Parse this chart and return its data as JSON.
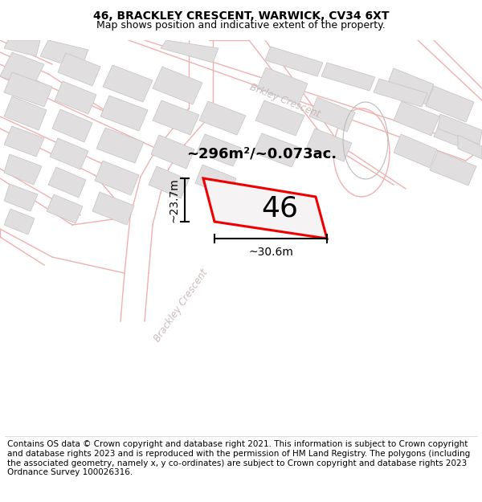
{
  "title": "46, BRACKLEY CRESCENT, WARWICK, CV34 6XT",
  "subtitle": "Map shows position and indicative extent of the property.",
  "area_text": "~296m²/~0.073ac.",
  "label": "46",
  "dim_width": "~30.6m",
  "dim_height": "~23.7m",
  "footer": "Contains OS data © Crown copyright and database right 2021. This information is subject to Crown copyright and database rights 2023 and is reproduced with the permission of HM Land Registry. The polygons (including the associated geometry, namely x, y co-ordinates) are subject to Crown copyright and database rights 2023 Ordnance Survey 100026316.",
  "map_bg": "#f7f5f5",
  "road_line_color": "#f0b0b0",
  "building_color": "#e0dede",
  "building_edge": "#c8c8c8",
  "highlight_color": "#ff0000",
  "road_label_color": "#c8b8b8",
  "fig_width": 6.0,
  "fig_height": 6.25,
  "title_fontsize": 10,
  "subtitle_fontsize": 9,
  "footer_fontsize": 7.5,
  "area_fontsize": 13,
  "label_fontsize": 26,
  "dim_fontsize": 10
}
